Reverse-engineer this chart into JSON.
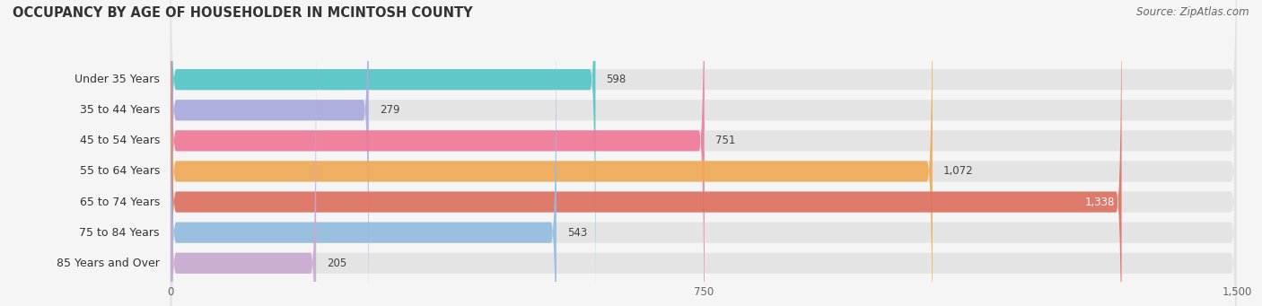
{
  "title": "OCCUPANCY BY AGE OF HOUSEHOLDER IN MCINTOSH COUNTY",
  "source": "Source: ZipAtlas.com",
  "categories": [
    "Under 35 Years",
    "35 to 44 Years",
    "45 to 54 Years",
    "55 to 64 Years",
    "65 to 74 Years",
    "75 to 84 Years",
    "85 Years and Over"
  ],
  "values": [
    598,
    279,
    751,
    1072,
    1338,
    543,
    205
  ],
  "bar_colors": [
    "#52c5c5",
    "#aaaadd",
    "#f07898",
    "#f0aa55",
    "#df7060",
    "#92bce0",
    "#c8aad0"
  ],
  "xlim": [
    0,
    1500
  ],
  "xticks": [
    0,
    750,
    1500
  ],
  "title_fontsize": 10.5,
  "source_fontsize": 8.5,
  "label_fontsize": 9,
  "value_fontsize": 8.5,
  "bg_color": "#f5f5f5",
  "bar_bg_color": "#e4e4e4",
  "bar_height": 0.68
}
